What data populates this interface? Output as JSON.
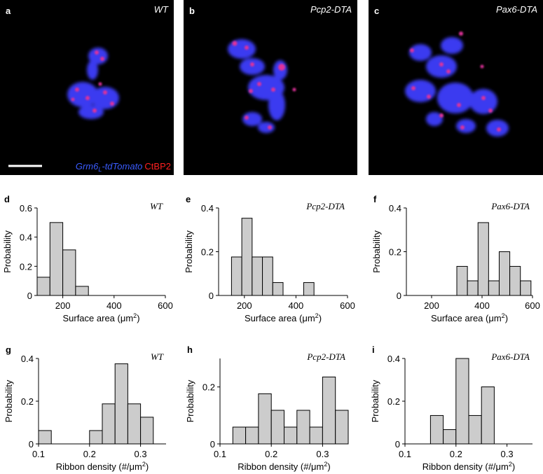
{
  "images": [
    {
      "panel": "a",
      "label": "WT"
    },
    {
      "panel": "b",
      "label": "Pcp2-DTA"
    },
    {
      "panel": "c",
      "label": "Pax6-DTA"
    }
  ],
  "stain": {
    "reporter": "Grm6",
    "reporter_sub": "L",
    "reporter_end": "-tdTomato",
    "ribbon": "CtBP2"
  },
  "chart_data": [
    {
      "type": "histogram",
      "panel": "d",
      "annotation": "WT",
      "color": "#cccccc",
      "ylabel": "Probability",
      "xlabel": "Surface area (μm",
      "xlabel_sup": "2",
      "xlabel_end": ")",
      "bins": [
        100,
        150,
        200,
        250,
        300
      ],
      "values": [
        0.125,
        0.5,
        0.3125,
        0.0625
      ],
      "xlim": [
        100,
        600
      ],
      "xticks": [
        200,
        400,
        600
      ],
      "ylim": [
        0,
        0.6
      ],
      "yticks": [
        0,
        0.2,
        0.4,
        0.6
      ]
    },
    {
      "type": "histogram",
      "panel": "e",
      "annotation": "Pcp2-DTA",
      "color": "#cccccc",
      "ylabel": "Probability",
      "xlabel": "Surface area (μm",
      "xlabel_sup": "2",
      "xlabel_end": ")",
      "bins": [
        150,
        190,
        230,
        270,
        310,
        350,
        390,
        430,
        470
      ],
      "values": [
        0.176,
        0.353,
        0.176,
        0.176,
        0.059,
        0,
        0,
        0.059
      ],
      "xlim": [
        100,
        600
      ],
      "xticks": [
        200,
        400,
        600
      ],
      "ylim": [
        0,
        0.4
      ],
      "yticks": [
        0,
        0.2,
        0.4
      ]
    },
    {
      "type": "histogram",
      "panel": "f",
      "annotation": "Pax6-DTA",
      "color": "#cccccc",
      "ylabel": "Probability",
      "xlabel": "Surface area (μm",
      "xlabel_sup": "2",
      "xlabel_end": ")",
      "bins": [
        300,
        342,
        384,
        426,
        468,
        510,
        552,
        594
      ],
      "values": [
        0.133,
        0.067,
        0.333,
        0.067,
        0.2,
        0.133,
        0.067
      ],
      "xlim": [
        100,
        600
      ],
      "xticks": [
        200,
        400,
        600
      ],
      "ylim": [
        0,
        0.4
      ],
      "yticks": [
        0,
        0.2,
        0.4
      ]
    },
    {
      "type": "histogram",
      "panel": "g",
      "annotation": "WT",
      "color": "#cccccc",
      "ylabel": "Probability",
      "xlabel": "Ribbon density (#/μm",
      "xlabel_sup": "2",
      "xlabel_end": ")",
      "bins": [
        0.1,
        0.125,
        0.15,
        0.175,
        0.2,
        0.225,
        0.25,
        0.275,
        0.3,
        0.325
      ],
      "values": [
        0.0625,
        0,
        0,
        0,
        0.0625,
        0.1875,
        0.375,
        0.1875,
        0.125
      ],
      "xlim": [
        0.1,
        0.35
      ],
      "xticks": [
        0.1,
        0.2,
        0.3
      ],
      "ylim": [
        0,
        0.4
      ],
      "yticks": [
        0,
        0.2,
        0.4
      ]
    },
    {
      "type": "histogram",
      "panel": "h",
      "annotation": "Pcp2-DTA",
      "color": "#cccccc",
      "ylabel": "Probability",
      "xlabel": "Ribbon density (#/μm",
      "xlabel_sup": "2",
      "xlabel_end": ")",
      "bins": [
        0.125,
        0.15,
        0.175,
        0.2,
        0.225,
        0.25,
        0.275,
        0.3,
        0.325,
        0.35
      ],
      "values": [
        0.059,
        0.059,
        0.176,
        0.118,
        0.059,
        0.118,
        0.059,
        0.235,
        0.118
      ],
      "xlim": [
        0.1,
        0.35
      ],
      "xticks": [
        0.1,
        0.2,
        0.3
      ],
      "ylim": [
        0,
        0.3
      ],
      "yticks": [
        0,
        0.2
      ]
    },
    {
      "type": "histogram",
      "panel": "i",
      "annotation": "Pax6-DTA",
      "color": "#cccccc",
      "ylabel": "Probability",
      "xlabel": "Ribbon density (#/μm",
      "xlabel_sup": "2",
      "xlabel_end": ")",
      "bins": [
        0.15,
        0.175,
        0.2,
        0.225,
        0.25,
        0.275
      ],
      "values": [
        0.133,
        0.067,
        0.4,
        0.133,
        0.267
      ],
      "xlim": [
        0.1,
        0.35
      ],
      "xticks": [
        0.1,
        0.2,
        0.3
      ],
      "ylim": [
        0,
        0.4
      ],
      "yticks": [
        0,
        0.2,
        0.4
      ]
    }
  ]
}
